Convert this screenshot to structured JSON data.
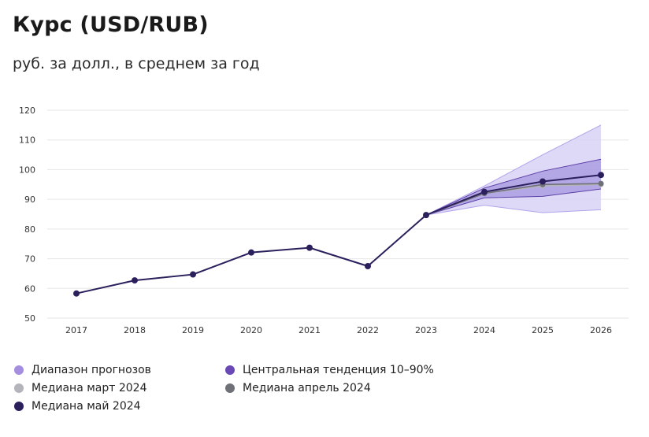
{
  "header": {
    "title": "Курс (USD/RUB)",
    "subtitle": "руб. за долл., в среднем за год"
  },
  "colors": {
    "range": "#d9d2f7",
    "range_stroke": "#b2a4ea",
    "central": "#8f7ed6",
    "central_stroke": "#5b3fa6",
    "median_march": "#b4b4bc",
    "median_april": "#6f7178",
    "median_may": "#2b1f5c",
    "grid": "#e6e6e6"
  },
  "legend": [
    {
      "label": "Диапазон прогнозов",
      "color": "#a58ee0"
    },
    {
      "label": "Центральная тенденция 10–90%",
      "color": "#6a48b5"
    },
    {
      "label": "Медиана март 2024",
      "color": "#b4b4bc"
    },
    {
      "label": "Медиана апрель 2024",
      "color": "#6f7178"
    },
    {
      "label": "Медиана май 2024",
      "color": "#2b1f5c"
    }
  ],
  "chart_data": {
    "type": "line",
    "x": [
      "2017",
      "2018",
      "2019",
      "2020",
      "2021",
      "2022",
      "2023",
      "2024",
      "2025",
      "2026"
    ],
    "yticks": [
      50,
      60,
      70,
      80,
      90,
      100,
      110,
      120
    ],
    "ylim": [
      50,
      120
    ],
    "grid": true,
    "series": [
      {
        "name": "Медиана май 2024",
        "values": [
          58.3,
          62.7,
          64.7,
          72.1,
          73.7,
          67.5,
          84.7,
          92.5,
          96.0,
          98.2
        ]
      },
      {
        "name": "Медиана март 2024",
        "values": [
          null,
          null,
          null,
          null,
          null,
          null,
          84.7,
          92.0,
          94.5,
          95.0
        ]
      },
      {
        "name": "Медиана апрель 2024",
        "values": [
          null,
          null,
          null,
          null,
          null,
          null,
          84.7,
          92.0,
          95.0,
          95.3
        ]
      }
    ],
    "bands": [
      {
        "name": "Диапазон прогнозов",
        "x": [
          "2023",
          "2024",
          "2025",
          "2026"
        ],
        "low": [
          84.7,
          88.0,
          85.5,
          86.5
        ],
        "high": [
          84.7,
          94.5,
          105.0,
          115.0
        ]
      },
      {
        "name": "Центральная тенденция 10–90%",
        "x": [
          "2023",
          "2024",
          "2025",
          "2026"
        ],
        "low": [
          84.7,
          90.5,
          91.0,
          93.5
        ],
        "high": [
          84.7,
          93.8,
          99.5,
          103.5
        ]
      }
    ],
    "legend_position": "bottom"
  }
}
